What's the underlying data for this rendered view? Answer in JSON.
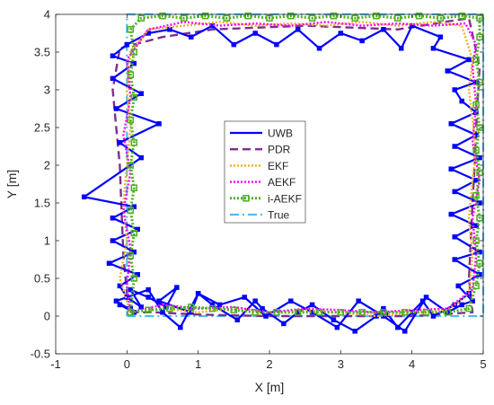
{
  "chart_data": {
    "type": "line",
    "title": "",
    "xlabel": "X [m]",
    "ylabel": "Y [m]",
    "xlim": [
      -1,
      5
    ],
    "ylim": [
      -0.5,
      4
    ],
    "xticks": [
      "-1",
      "0",
      "1",
      "2",
      "3",
      "4",
      "5"
    ],
    "yticks": [
      "-0.5",
      "0",
      "0.5",
      "1",
      "1.5",
      "2",
      "2.5",
      "3",
      "3.5",
      "4"
    ],
    "xtick_values": [
      -1,
      0,
      1,
      2,
      3,
      4,
      5
    ],
    "ytick_values": [
      -0.5,
      0,
      0.5,
      1,
      1.5,
      2,
      2.5,
      3,
      3.5,
      4
    ],
    "grid": false,
    "legend_position": "center",
    "series": [
      {
        "name": "UWB",
        "color": "#0000ff",
        "style": "solid-markers",
        "x": [
          0.05,
          -0.1,
          0.1,
          -0.15,
          0.3,
          0.5,
          0.75,
          1.0,
          1.3,
          1.65,
          1.95,
          2.3,
          2.6,
          2.95,
          3.25,
          3.6,
          3.9,
          4.2,
          4.5,
          4.7,
          4.85,
          4.65,
          4.95,
          4.6,
          4.95,
          4.6,
          4.9,
          4.55,
          4.95,
          4.6,
          4.9,
          4.55,
          4.95,
          4.6,
          4.9,
          4.55,
          4.9,
          4.7,
          4.6,
          4.9,
          4.5,
          4.8,
          4.3,
          4.4,
          4.0,
          3.85,
          3.6,
          3.3,
          3.0,
          2.7,
          2.4,
          2.1,
          1.8,
          1.5,
          1.2,
          0.9,
          0.6,
          0.3,
          0.0,
          -0.2,
          0.1,
          -0.2,
          0.2,
          -0.15,
          0.45,
          -0.1,
          0.2,
          -0.6,
          0.1,
          -0.2,
          0.15,
          -0.2,
          0.1,
          -0.25,
          0.15,
          -0.1,
          0.0,
          0.2,
          0.05,
          0.3,
          0.55,
          0.7,
          0.45,
          0.9,
          1.0,
          1.2,
          1.55,
          1.8,
          1.9,
          2.2,
          2.4,
          2.6,
          2.9,
          3.2,
          3.5,
          3.6,
          3.8,
          4.0,
          4.15,
          4.3,
          4.6,
          4.8
        ],
        "y": [
          0.1,
          0.15,
          0.05,
          0.2,
          0.35,
          0.05,
          -0.15,
          0.3,
          0.15,
          0.25,
          0.0,
          0.2,
          0.05,
          -0.15,
          0.2,
          0.0,
          -0.2,
          0.25,
          0.05,
          0.15,
          0.2,
          0.4,
          0.55,
          0.75,
          0.85,
          1.05,
          1.2,
          1.35,
          1.5,
          1.65,
          1.8,
          1.95,
          2.1,
          2.25,
          2.4,
          2.55,
          2.7,
          2.85,
          3.0,
          3.1,
          3.25,
          3.4,
          3.55,
          3.7,
          3.85,
          3.55,
          3.8,
          3.65,
          3.75,
          3.55,
          3.8,
          3.6,
          3.75,
          3.6,
          3.85,
          3.7,
          3.8,
          3.75,
          3.6,
          3.45,
          3.35,
          3.15,
          2.95,
          2.75,
          2.55,
          2.3,
          2.1,
          1.58,
          1.45,
          1.3,
          1.15,
          1.0,
          0.85,
          0.7,
          0.55,
          0.4,
          0.25,
          0.12,
          0.35,
          0.25,
          0.12,
          0.38,
          0.2,
          0.05,
          0.3,
          0.15,
          -0.05,
          0.2,
          0.1,
          -0.1,
          0.05,
          0.15,
          -0.05,
          -0.2,
          0.0,
          0.1,
          -0.15,
          0.05,
          0.2,
          0.0,
          0.15,
          0.3
        ]
      },
      {
        "name": "PDR",
        "color": "#7e2f8e",
        "style": "dashed",
        "x": [
          0.05,
          0.4,
          1.0,
          2.0,
          3.0,
          4.0,
          4.85,
          4.8,
          4.85,
          4.88,
          4.9,
          4.95,
          4.8,
          3.8,
          2.5,
          1.2,
          0.5,
          -0.1,
          -0.2,
          -0.15,
          -0.1,
          -0.08,
          -0.05,
          0.0
        ],
        "y": [
          0.05,
          0.05,
          0.02,
          0.0,
          0.0,
          0.0,
          0.05,
          0.5,
          1.5,
          2.0,
          2.5,
          3.3,
          3.95,
          3.8,
          3.85,
          3.8,
          3.7,
          3.55,
          3.0,
          2.5,
          2.0,
          1.5,
          0.8,
          0.3
        ]
      },
      {
        "name": "EKF",
        "color": "#edb120",
        "style": "dotted",
        "x": [
          0.05,
          0.5,
          1.0,
          1.5,
          2.0,
          2.5,
          3.0,
          3.5,
          4.0,
          4.5,
          4.8,
          4.85,
          4.8,
          4.85,
          4.9,
          4.85,
          4.8,
          4.85,
          4.7,
          4.3,
          3.8,
          3.3,
          2.8,
          2.3,
          1.8,
          1.3,
          0.8,
          0.3,
          0.05,
          0.0,
          0.05,
          0.0,
          -0.05,
          0.0,
          -0.1,
          0.0,
          0.05
        ],
        "y": [
          0.05,
          0.1,
          0.05,
          0.1,
          0.05,
          0.08,
          0.05,
          0.0,
          0.05,
          0.08,
          0.3,
          0.8,
          1.3,
          1.8,
          2.2,
          2.6,
          3.0,
          3.4,
          3.85,
          3.9,
          3.85,
          3.9,
          3.85,
          3.88,
          3.85,
          3.9,
          3.85,
          3.8,
          3.5,
          3.0,
          2.5,
          2.0,
          1.5,
          1.0,
          0.5,
          0.2,
          0.05
        ]
      },
      {
        "name": "AEKF",
        "color": "#ff00ff",
        "style": "dotted",
        "x": [
          0.05,
          0.5,
          1.0,
          1.5,
          2.0,
          2.5,
          3.0,
          3.5,
          4.0,
          4.5,
          4.85,
          4.9,
          4.85,
          4.95,
          4.85,
          4.9,
          4.85,
          4.9,
          4.75,
          4.3,
          3.8,
          3.3,
          2.8,
          2.3,
          1.8,
          1.3,
          0.8,
          0.3,
          0.0,
          0.05,
          -0.05,
          0.05,
          -0.05,
          0.05,
          0.0,
          0.05
        ],
        "y": [
          0.05,
          0.15,
          0.1,
          0.12,
          0.05,
          0.1,
          0.08,
          0.05,
          0.08,
          0.1,
          0.35,
          0.8,
          1.3,
          1.8,
          2.3,
          2.8,
          3.3,
          3.6,
          3.88,
          3.85,
          3.88,
          3.85,
          3.9,
          3.85,
          3.88,
          3.85,
          3.9,
          3.8,
          3.4,
          2.9,
          2.4,
          1.9,
          1.4,
          0.9,
          0.4,
          0.05
        ]
      },
      {
        "name": "i-AEKF",
        "color": "#4daf1f",
        "style": "dotted-square-markers",
        "x": [
          0.05,
          0.3,
          0.6,
          0.9,
          1.2,
          1.5,
          1.8,
          2.1,
          2.4,
          2.7,
          3.0,
          3.3,
          3.6,
          3.9,
          4.2,
          4.5,
          4.8,
          4.9,
          4.95,
          4.9,
          4.95,
          4.9,
          4.95,
          4.9,
          4.95,
          4.9,
          4.95,
          4.9,
          4.95,
          4.95,
          4.7,
          4.4,
          4.1,
          3.8,
          3.5,
          3.2,
          2.9,
          2.6,
          2.3,
          2.0,
          1.7,
          1.4,
          1.1,
          0.8,
          0.5,
          0.2,
          0.05,
          0.1,
          0.05,
          0.1,
          0.05,
          0.1,
          0.05,
          0.1,
          0.05,
          0.1,
          0.05,
          0.1,
          0.05
        ],
        "y": [
          0.05,
          0.08,
          0.1,
          0.12,
          0.1,
          0.08,
          0.05,
          0.05,
          0.05,
          0.05,
          0.05,
          0.05,
          0.05,
          0.05,
          0.05,
          0.05,
          0.1,
          0.4,
          0.7,
          1.0,
          1.3,
          1.6,
          1.9,
          2.2,
          2.5,
          2.8,
          3.1,
          3.4,
          3.7,
          3.95,
          3.98,
          3.95,
          3.98,
          3.95,
          3.98,
          3.95,
          3.98,
          3.95,
          3.98,
          3.95,
          3.98,
          3.95,
          3.98,
          3.95,
          3.98,
          3.95,
          3.8,
          3.5,
          3.2,
          2.9,
          2.6,
          2.3,
          2.0,
          1.7,
          1.4,
          1.1,
          0.8,
          0.5,
          0.05
        ]
      },
      {
        "name": "True",
        "color": "#4dbeee",
        "style": "dashdot",
        "x": [
          0,
          5,
          5,
          0,
          0
        ],
        "y": [
          0,
          0,
          4,
          4,
          0
        ]
      }
    ]
  }
}
